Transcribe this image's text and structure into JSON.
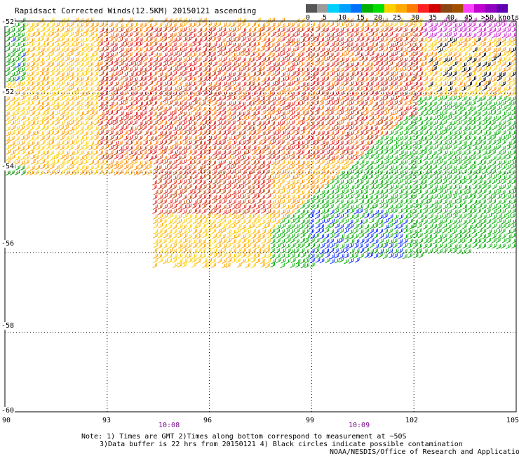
{
  "title": "Rapidsact Corrected Winds(12.5KM) 20150121 ascending",
  "colorbar": {
    "colors": [
      "#555555",
      "#9b9b9b",
      "#00d0ff",
      "#00a0ff",
      "#0070ff",
      "#00b000",
      "#00e000",
      "#ffd000",
      "#ffaa00",
      "#ff7a00",
      "#ff2020",
      "#d00000",
      "#8b4513",
      "#a05000",
      "#ff40ff",
      "#c000d0",
      "#9000c0",
      "#6000b0"
    ],
    "labels": [
      "0",
      "5",
      "10",
      "15",
      "20",
      "25",
      "30",
      "35",
      "40",
      "45",
      ">50 knots"
    ]
  },
  "map": {
    "lon_ticks": [
      "90",
      "93",
      "96",
      "99",
      "102",
      "105"
    ],
    "lat_ticks": [
      "-52",
      "-54",
      "-56",
      "-58",
      "-60"
    ],
    "partial_lat_label": "-52",
    "times": [
      {
        "text": "10:08",
        "lon": 94.5
      },
      {
        "text": "10:09",
        "lon": 100.5
      }
    ]
  },
  "notes": {
    "line1": "Note: 1) Times are GMT 2)Times along bottom correspond to measurement at ~50S",
    "line2": "3)Data buffer is 22 hrs from 20150121 4) Black circles indicate possible contamination",
    "credit": "NOAA/NESDIS/Office of Research and Applications"
  }
}
